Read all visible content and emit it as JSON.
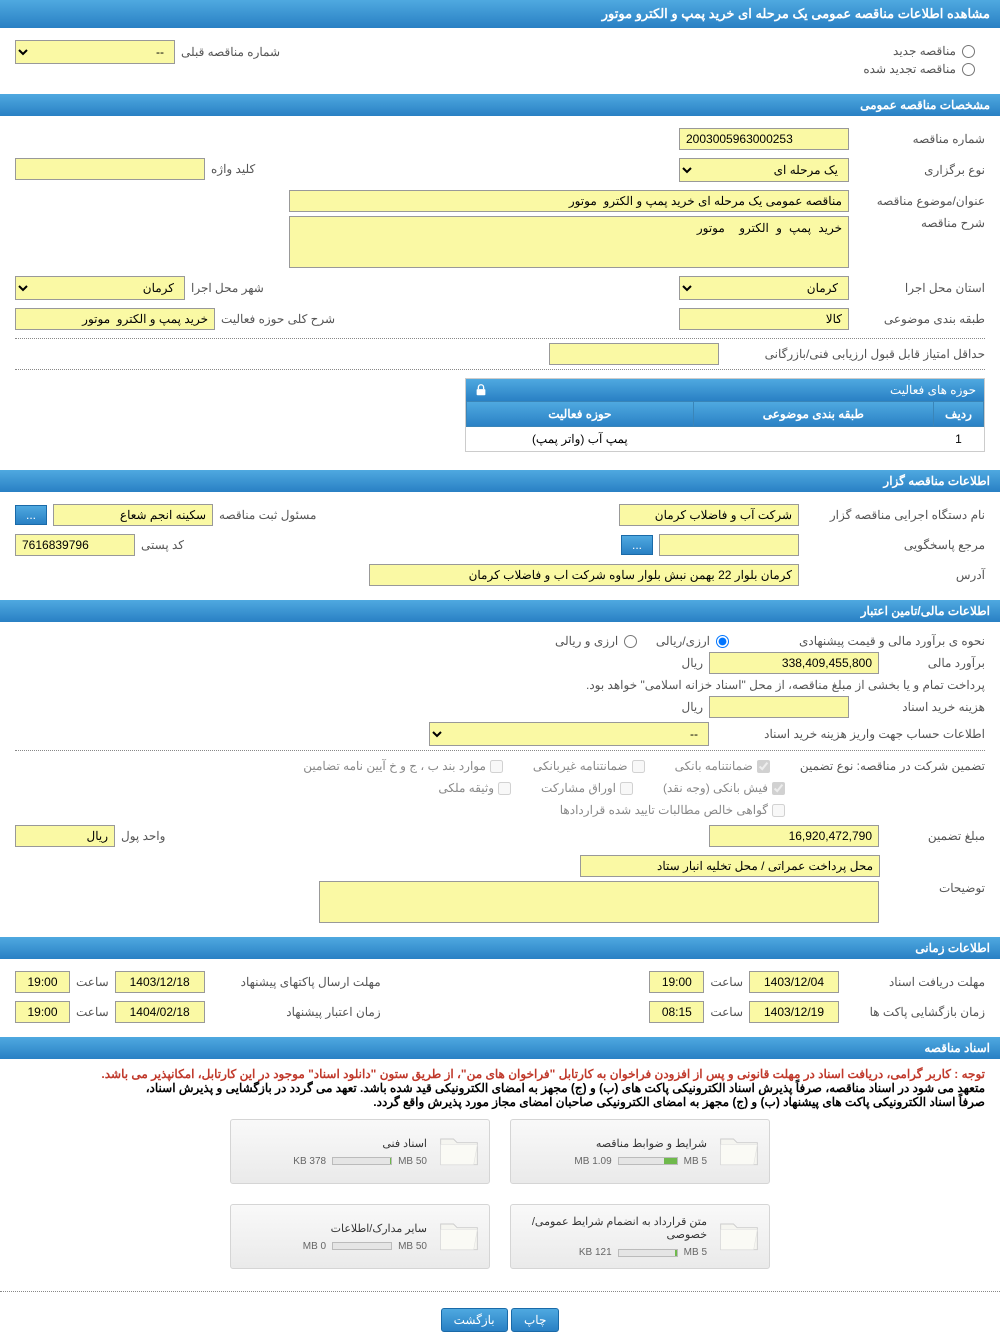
{
  "colors": {
    "header_bg": "#2980c4",
    "yellow_input": "#faf9a4",
    "red_text": "#c0392b",
    "green_fill": "#6fb94c"
  },
  "header": {
    "title": "مشاهده اطلاعات مناقصه عمومی یک مرحله ای خرید پمپ و الکترو موتور"
  },
  "tender_type": {
    "new_label": "مناقصه جدید",
    "renewed_label": "مناقصه تجدید شده",
    "prev_number_label": "شماره مناقصه قبلی",
    "prev_number_value": "--"
  },
  "general": {
    "section_title": "مشخصات مناقصه عمومی",
    "number_label": "شماره مناقصه",
    "number_value": "2003005963000253",
    "type_label": "نوع برگزاری",
    "type_value": "یک مرحله ای",
    "keyword_label": "کلید واژه",
    "keyword_value": "",
    "subject_label": "عنوان/موضوع مناقصه",
    "subject_value": "مناقصه عمومی یک مرحله ای خرید پمپ و الکترو  موتور",
    "desc_label": "شرح مناقصه",
    "desc_value": "خرید پمپ و الکترو  موتور",
    "province_label": "استان محل اجرا",
    "province_value": "کرمان",
    "city_label": "شهر محل اجرا",
    "city_value": "کرمان",
    "category_label": "طبقه بندی موضوعی",
    "category_value": "کالا",
    "activity_scope_label": "شرح کلی حوزه فعالیت",
    "activity_scope_value": "خرید پمپ و الکترو  موتور",
    "min_score_label": "حداقل امتیاز قابل قبول ارزیابی فنی/بازرگانی",
    "min_score_value": ""
  },
  "activity": {
    "box_title": "حوزه های فعالیت",
    "col_row": "ردیف",
    "col_category": "طبقه بندی موضوعی",
    "col_scope": "حوزه فعالیت",
    "rows": [
      {
        "idx": "1",
        "category": "",
        "scope": "پمپ آب (واتر پمپ)"
      }
    ]
  },
  "organizer": {
    "section_title": "اطلاعات مناقصه گزار",
    "org_label": "نام دستگاه اجرایی مناقصه گزار",
    "org_value": "شرکت آب و فاضلاب کرمان",
    "registrar_label": "مسئول ثبت مناقصه",
    "registrar_value": "سکینه انجم شعاع",
    "responder_label": "مرجع پاسخگویی",
    "responder_value": "",
    "postal_label": "کد پستی",
    "postal_value": "7616839796",
    "address_label": "آدرس",
    "address_value": "کرمان بلوار 22 بهمن نبش بلوار ساوه شرکت اب و فاضلاب کرمان",
    "more_btn": "..."
  },
  "financial": {
    "section_title": "اطلاعات مالی/تامین اعتبار",
    "est_method_label": "نحوه ی برآورد مالی و قیمت پیشنهادی",
    "est_method_opt1": "ارزی/ریالی",
    "est_method_opt2": "ارزی و ریالی",
    "estimate_label": "برآورد مالی",
    "estimate_value": "338,409,455,800",
    "currency": "ریال",
    "payment_note": "پرداخت تمام و یا بخشی از مبلغ مناقصه، از محل \"اسناد خزانه اسلامی\" خواهد بود.",
    "doc_cost_label": "هزینه خرید اسناد",
    "doc_cost_value": "",
    "account_label": "اطلاعات حساب جهت واریز هزینه خرید اسناد",
    "account_value": "--",
    "guarantee_label": "تضمین شرکت در مناقصه:   نوع تضمین",
    "chk_bank_guarantee": "ضمانتنامه بانکی",
    "chk_nonbank_guarantee": "ضمانتنامه غیربانکی",
    "chk_cases": "موارد بند ب ، ج و خ آیین نامه تضامین",
    "chk_cash": "فیش بانکی (وجه نقد)",
    "chk_bonds": "اوراق مشارکت",
    "chk_property": "وثیقه ملکی",
    "chk_cert": "گواهی خالص مطالبات تایید شده قراردادها",
    "guarantee_amount_label": "مبلغ تضمین",
    "guarantee_amount_value": "16,920,472,790",
    "unit_label": "واحد پول",
    "unit_value": "ریال",
    "deposit_label": "محل پرداخت عمراتی / محل تخلیه انبار ستاد",
    "notes_label": "توضیحات",
    "notes_value": ""
  },
  "timing": {
    "section_title": "اطلاعات زمانی",
    "receive_label": "مهلت دریافت اسناد",
    "receive_date": "1403/12/04",
    "receive_time_label": "ساعت",
    "receive_time": "19:00",
    "send_label": "مهلت ارسال پاکتهای پیشنهاد",
    "send_date": "1403/12/18",
    "send_time": "19:00",
    "open_label": "زمان بازگشایی پاکت ها",
    "open_date": "1403/12/19",
    "open_time": "08:15",
    "validity_label": "زمان اعتبار پیشنهاد",
    "validity_date": "1404/02/18",
    "validity_time": "19:00"
  },
  "documents": {
    "section_title": "اسناد مناقصه",
    "notice_red": "توجه : کاربر گرامی، دریافت اسناد در مهلت قانونی و پس از افزودن فراخوان به کارتابل \"فراخوان های من\"، از طریق ستون \"دانلود اسناد\" موجود در این کارتابل، امکانپذیر می باشد.",
    "notice_bold1": "متعهد می شود در اسناد مناقصه، صرفاً پذیرش اسناد الکترونیکی پاکت های (ب) و (ج) مجهز به امضای الکترونیکی قید شده باشد. تعهد می گردد در بازگشایی و پذیرش اسناد،",
    "notice_bold2": "صرفاً اسناد الکترونیکی پاکت های پیشنهاد (ب) و (ج) مجهز به امضای الکترونیکی صاحبان امضای مجاز مورد پذیرش واقع گردد.",
    "files": [
      {
        "title": "شرایط و ضوابط مناقصه",
        "used": "1.09 MB",
        "max": "5 MB",
        "fill_pct": 22
      },
      {
        "title": "اسناد فنی",
        "used": "378 KB",
        "max": "50 MB",
        "fill_pct": 2
      },
      {
        "title": "متن قرارداد به انضمام شرایط عمومی/خصوصی",
        "used": "121 KB",
        "max": "5 MB",
        "fill_pct": 3
      },
      {
        "title": "سایر مدارک/اطلاعات",
        "used": "0 MB",
        "max": "50 MB",
        "fill_pct": 0
      }
    ]
  },
  "footer": {
    "print": "چاپ",
    "back": "بازگشت"
  }
}
